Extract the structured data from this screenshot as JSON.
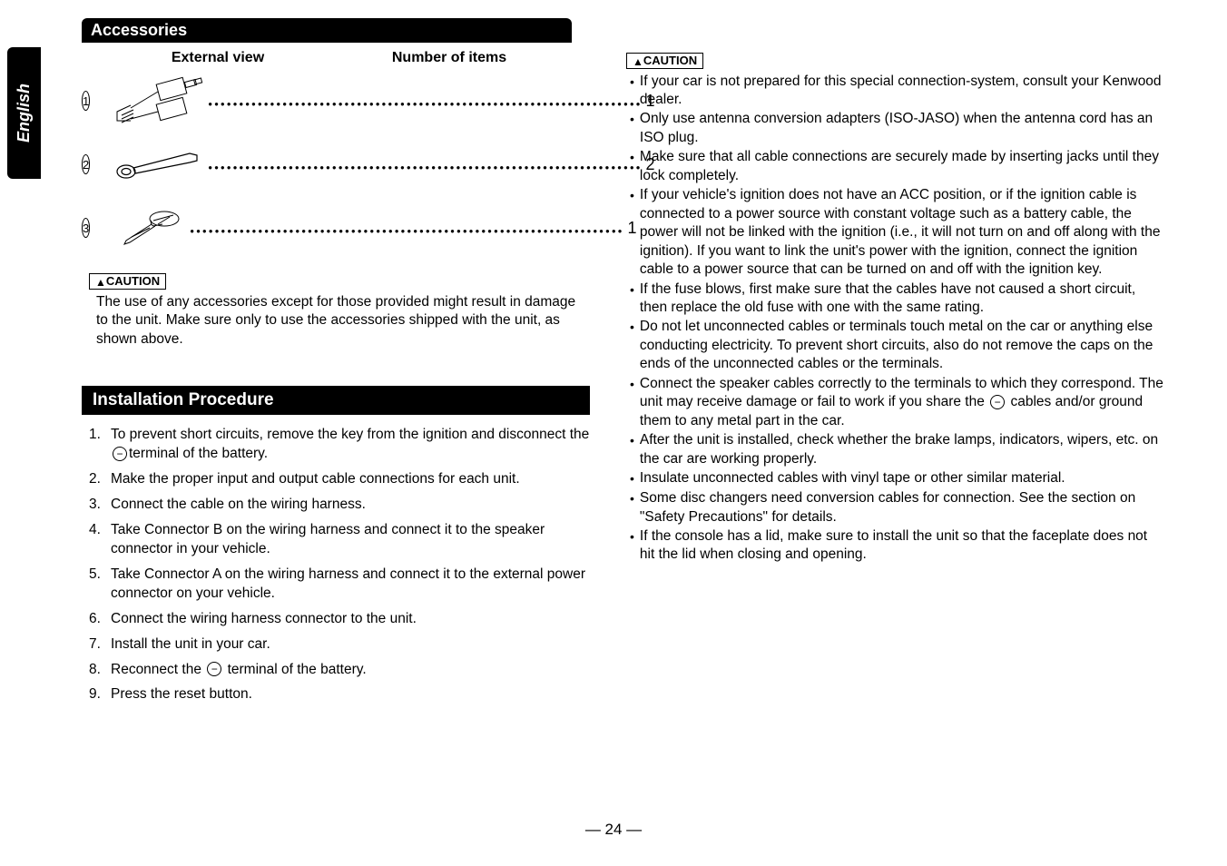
{
  "language_tab": "English",
  "accessories": {
    "header": "Accessories",
    "col_view": "External view",
    "col_num": "Number of items",
    "items": [
      {
        "num": "1",
        "qty": "1"
      },
      {
        "num": "2",
        "qty": "2"
      },
      {
        "num": "3",
        "qty": "1"
      }
    ],
    "caution_label": "CAUTION",
    "caution_text": "The use of any accessories except for those provided might result in damage to the unit. Make sure only to use the accessories shipped with the unit, as shown above."
  },
  "installation": {
    "header": "Installation Procedure",
    "steps": [
      {
        "num": "1.",
        "text_before": "To prevent short circuits, remove the key from the ignition and disconnect the ",
        "has_minus": true,
        "text_after": "terminal of the battery."
      },
      {
        "num": "2.",
        "text_before": "Make the proper input and output cable connections for each unit.",
        "has_minus": false,
        "text_after": ""
      },
      {
        "num": "3.",
        "text_before": "Connect the cable on the wiring harness.",
        "has_minus": false,
        "text_after": ""
      },
      {
        "num": "4.",
        "text_before": "Take Connector B on the wiring harness and connect it to the speaker connector in your vehicle.",
        "has_minus": false,
        "text_after": ""
      },
      {
        "num": "5.",
        "text_before": "Take Connector A on the wiring harness and connect it to the external power connector on your vehicle.",
        "has_minus": false,
        "text_after": ""
      },
      {
        "num": "6.",
        "text_before": "Connect the wiring harness connector to the unit.",
        "has_minus": false,
        "text_after": ""
      },
      {
        "num": "7.",
        "text_before": "Install the unit in your car.",
        "has_minus": false,
        "text_after": ""
      },
      {
        "num": "8.",
        "text_before": "Reconnect the ",
        "has_minus": true,
        "text_after": " terminal of the battery."
      },
      {
        "num": "9.",
        "text_before": "Press the reset button.",
        "has_minus": false,
        "text_after": ""
      }
    ]
  },
  "right_caution": {
    "label": "CAUTION",
    "items": [
      {
        "text_before": "If your car is not prepared for this special connection-system, consult your Kenwood dealer.",
        "has_minus": false,
        "text_after": ""
      },
      {
        "text_before": "Only use antenna conversion adapters (ISO-JASO) when the antenna cord has an ISO plug.",
        "has_minus": false,
        "text_after": ""
      },
      {
        "text_before": "Make sure that all cable connections are securely made by inserting jacks until they lock completely.",
        "has_minus": false,
        "text_after": ""
      },
      {
        "text_before": "If your vehicle's ignition does not have an ACC position, or if the ignition cable is connected to a power source with constant voltage such as a battery cable, the power will not be linked with the ignition (i.e., it will not turn on and off along with the ignition). If you want to link the unit's power with the ignition, connect the ignition cable to a power source that can be turned on and off with the ignition key.",
        "has_minus": false,
        "text_after": ""
      },
      {
        "text_before": "If the fuse blows, first make sure that the cables have not caused a short circuit, then replace the old fuse with one with the same rating.",
        "has_minus": false,
        "text_after": ""
      },
      {
        "text_before": "Do not let unconnected cables or terminals touch metal on the car or anything else conducting electricity. To prevent short circuits, also do not remove the caps on the ends of the unconnected cables or the terminals.",
        "has_minus": false,
        "text_after": ""
      },
      {
        "text_before": "Connect the speaker cables correctly to the terminals to which they correspond. The unit may receive damage or fail to work if you share the ",
        "has_minus": true,
        "text_after": " cables and/or ground them to any metal part in the car."
      },
      {
        "text_before": "After the unit is installed, check whether the brake lamps, indicators, wipers, etc. on the car are working properly.",
        "has_minus": false,
        "text_after": ""
      },
      {
        "text_before": "Insulate unconnected cables with vinyl tape or other similar material.",
        "has_minus": false,
        "text_after": ""
      },
      {
        "text_before": "Some disc changers need conversion cables for connection. See the section on \"Safety Precautions\" for details.",
        "has_minus": false,
        "text_after": ""
      },
      {
        "text_before": "If the console has a lid, make sure to install the unit so that the faceplate does not hit the lid when closing and opening.",
        "has_minus": false,
        "text_after": ""
      }
    ]
  },
  "page_number": "— 24 —"
}
